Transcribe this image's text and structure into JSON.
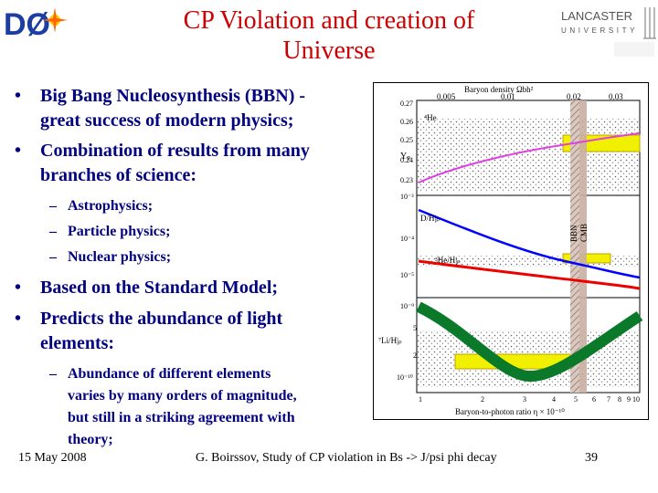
{
  "slide": {
    "title_line1": "CP Violation and creation of",
    "title_line2": "Universe",
    "logo_left_text": "DØ",
    "logo_right_line1": "LANCASTER",
    "logo_right_line2": "UNIVERSITY",
    "bullets": [
      {
        "lines": [
          "Big Bang Nucleosynthesis (BBN) -",
          "great success of modern physics;"
        ]
      },
      {
        "lines": [
          "Combination of results from many",
          "branches of science:"
        ]
      },
      {
        "lines": [
          "Based on the Standard Model;"
        ]
      },
      {
        "lines": [
          "Predicts  the  abundance  of  light",
          "elements:"
        ]
      }
    ],
    "subbullets_a": [
      "Astrophysics;",
      "Particle physics;",
      "Nuclear physics;"
    ],
    "subbullet_b": [
      "Abundance of different elements",
      "varies by many orders of magnitude,",
      "but still in a striking agreement with",
      "theory;"
    ],
    "footer_date": "15 May 2008",
    "footer_center": "G. Boirssov, Study of CP violation in Bs -> J/psi phi decay",
    "footer_page": "39"
  },
  "figure": {
    "top_axis_label": "Baryon density Ωbh²",
    "top_ticks": [
      "0.005",
      "0.01",
      "0.02",
      "0.03"
    ],
    "bottom_axis_label": "Baryon-to-photon ratio η × 10⁻¹⁰",
    "bottom_ticks": [
      "1",
      "2",
      "3",
      "4",
      "5",
      "6",
      "7",
      "8",
      "9",
      "10"
    ],
    "yp_label": "Yₚ",
    "he4_label": "⁴He",
    "yp_ticks": [
      "0.27",
      "0.26",
      "0.25",
      "0.24",
      "0.23"
    ],
    "dh_label": "D/H|ₚ",
    "he3_label": "³He/H|ₚ",
    "mid_ticks": [
      "10⁻³",
      "10⁻⁴",
      "10⁻⁵"
    ],
    "li_label": "⁷Li/H|ₚ",
    "li_ticks": [
      "10⁻⁹",
      "5",
      "2",
      "10⁻¹⁰"
    ],
    "bbn_label": "BBN",
    "cmb_label": "CMB",
    "colors": {
      "he4": "#e040e0",
      "dh": "#0000ff",
      "he3": "#ee0000",
      "li": "#0a7a2a",
      "box": "#f0f000"
    }
  }
}
